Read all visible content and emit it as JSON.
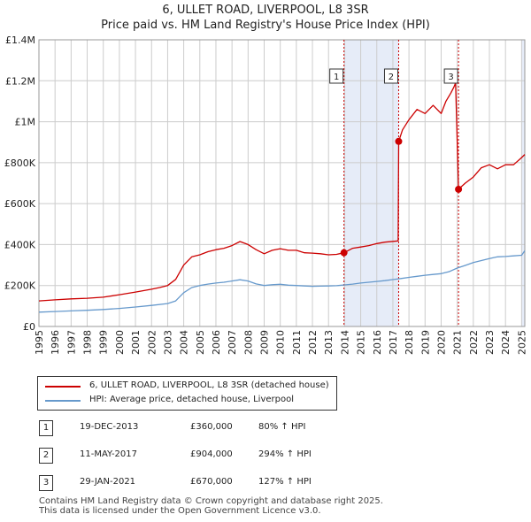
{
  "title_line1": "6, ULLET ROAD, LIVERPOOL, L8 3SR",
  "title_line2": "Price paid vs. HM Land Registry's House Price Index (HPI)",
  "colors": {
    "property": "#cc0000",
    "hpi": "#6699cc",
    "shade": "#e6ecf8",
    "grid": "#cccccc",
    "vline": "#cc0000"
  },
  "legend": [
    {
      "label": "6, ULLET ROAD, LIVERPOOL, L8 3SR (detached house)"
    },
    {
      "label": "HPI: Average price, detached house, Liverpool"
    }
  ],
  "sales": [
    {
      "num": "1",
      "date": "19-DEC-2013",
      "price": "£360,000",
      "hpi": "80% ↑ HPI"
    },
    {
      "num": "2",
      "date": "11-MAY-2017",
      "price": "£904,000",
      "hpi": "294% ↑ HPI"
    },
    {
      "num": "3",
      "date": "29-JAN-2021",
      "price": "£670,000",
      "hpi": "127% ↑ HPI"
    }
  ],
  "footer": {
    "line1": "Contains HM Land Registry data © Crown copyright and database right 2025.",
    "line2": "This data is licensed under the Open Government Licence v3.0."
  },
  "chart_data": {
    "type": "line",
    "title": "6, ULLET ROAD, LIVERPOOL, L8 3SR — Price paid vs. HM Land Registry's House Price Index (HPI)",
    "xlabel": "",
    "ylabel": "",
    "xlim": [
      1995,
      2025.2
    ],
    "ylim": [
      0,
      1400000
    ],
    "y_ticks": [
      0,
      200000,
      400000,
      600000,
      800000,
      1000000,
      1200000,
      1400000
    ],
    "y_tick_labels": [
      "£0",
      "£200K",
      "£400K",
      "£600K",
      "£800K",
      "£1M",
      "£1.2M",
      "£1.4M"
    ],
    "x_ticks": [
      1995,
      1996,
      1997,
      1998,
      1999,
      2000,
      2001,
      2002,
      2003,
      2004,
      2005,
      2006,
      2007,
      2008,
      2009,
      2010,
      2011,
      2012,
      2013,
      2014,
      2015,
      2016,
      2017,
      2018,
      2019,
      2020,
      2021,
      2022,
      2023,
      2024,
      2025
    ],
    "grid": true,
    "shaded_spans": [
      [
        2013.96,
        2017.36
      ],
      [
        2025.0,
        2025.2
      ]
    ],
    "series": [
      {
        "name": "6, ULLET ROAD, LIVERPOOL, L8 3SR (detached house)",
        "x": [
          1995,
          1996,
          1997,
          1998,
          1999,
          2000,
          2001,
          2002,
          2002.5,
          2003,
          2003.5,
          2004,
          2004.5,
          2005,
          2005.5,
          2006,
          2006.5,
          2007,
          2007.5,
          2008,
          2008.5,
          2009,
          2009.5,
          2010,
          2010.5,
          2011,
          2011.5,
          2012,
          2012.5,
          2013,
          2013.5,
          2013.96,
          2014.5,
          2015,
          2015.5,
          2016,
          2016.5,
          2017.33,
          2017.36,
          2017.6,
          2018,
          2018.5,
          2019,
          2019.5,
          2020,
          2020.3,
          2020.6,
          2020.8,
          2020.9,
          2021.08,
          2021.5,
          2022,
          2022.5,
          2023,
          2023.5,
          2024,
          2024.5,
          2025,
          2025.2
        ],
        "values": [
          125000,
          130000,
          135000,
          138000,
          143000,
          155000,
          168000,
          182000,
          190000,
          200000,
          230000,
          300000,
          340000,
          350000,
          365000,
          375000,
          382000,
          395000,
          415000,
          400000,
          375000,
          355000,
          372000,
          380000,
          372000,
          372000,
          360000,
          358000,
          355000,
          350000,
          352000,
          360000,
          382000,
          388000,
          395000,
          405000,
          412000,
          418000,
          904000,
          960000,
          1010000,
          1060000,
          1040000,
          1080000,
          1040000,
          1100000,
          1140000,
          1170000,
          1190000,
          670000,
          700000,
          730000,
          775000,
          790000,
          770000,
          790000,
          790000,
          825000,
          840000
        ]
      },
      {
        "name": "HPI: Average price, detached house, Liverpool",
        "x": [
          1995,
          1996,
          1997,
          1998,
          1999,
          2000,
          2001,
          2002,
          2003,
          2003.5,
          2004,
          2004.5,
          2005,
          2005.5,
          2006,
          2006.5,
          2007,
          2007.5,
          2008,
          2008.5,
          2009,
          2009.5,
          2010,
          2010.5,
          2011,
          2011.5,
          2012,
          2012.5,
          2013,
          2013.5,
          2014,
          2014.5,
          2015,
          2015.5,
          2016,
          2016.5,
          2017,
          2017.5,
          2018,
          2018.5,
          2019,
          2019.5,
          2020,
          2020.5,
          2021,
          2021.5,
          2022,
          2022.5,
          2023,
          2023.5,
          2024,
          2024.5,
          2025,
          2025.2
        ],
        "values": [
          70000,
          73000,
          76000,
          79000,
          83000,
          88000,
          95000,
          103000,
          112000,
          125000,
          165000,
          190000,
          200000,
          207000,
          212000,
          216000,
          222000,
          228000,
          222000,
          208000,
          200000,
          204000,
          206000,
          202000,
          200000,
          198000,
          196000,
          197000,
          198000,
          199000,
          203000,
          207000,
          212000,
          216000,
          220000,
          224000,
          229000,
          234000,
          240000,
          245000,
          250000,
          254000,
          258000,
          268000,
          285000,
          298000,
          312000,
          322000,
          332000,
          340000,
          342000,
          345000,
          348000,
          370000
        ]
      }
    ],
    "sale_points": [
      {
        "label": "1",
        "x": 2013.96,
        "value": 360000
      },
      {
        "label": "2",
        "x": 2017.36,
        "value": 904000
      },
      {
        "label": "3",
        "x": 2021.08,
        "value": 670000
      }
    ]
  }
}
